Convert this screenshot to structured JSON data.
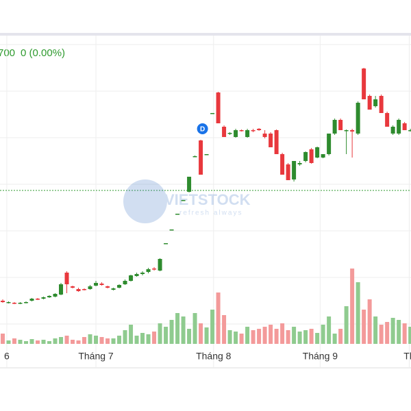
{
  "chart_data": {
    "type": "candlestick",
    "ref_label": "700",
    "change_label": "0 (0.00%)",
    "marker_label": "D",
    "watermark": "VIETSTOCK",
    "watermark_sub": "refresh always",
    "up_color": "#2e8b2e",
    "down_color": "#e8383d",
    "vol_up_color": "#8fcb8f",
    "vol_down_color": "#f39a9a",
    "ylim": [
      0,
      108
    ],
    "ygrid": [
      95,
      81.4,
      67.8,
      54.2,
      40.6,
      27,
      13.4
    ],
    "ref_value": 52.4,
    "marker_value": 70,
    "marker_index": 34.3,
    "vol_ylim": [
      0,
      150
    ],
    "xlim": [
      -0.47,
      70.1
    ],
    "xticks": [
      {
        "value": 0.7,
        "label": "6"
      },
      {
        "value": 16,
        "label": "Tháng 7"
      },
      {
        "value": 36.2,
        "label": "Tháng 8"
      },
      {
        "value": 54.5,
        "label": "Tháng 9"
      },
      {
        "value": 69.8,
        "label": "Th"
      }
    ],
    "open": [
      20.2,
      19.6,
      19.6,
      19.4,
      19.6,
      20.2,
      20.8,
      20.8,
      21.2,
      21.4,
      22,
      28.4,
      24.4,
      23.6,
      23.6,
      23.6,
      24.6,
      25.2,
      24.4,
      23.4,
      24,
      25,
      26,
      27.4,
      28,
      28.6,
      29.6,
      29,
      36.8,
      41,
      45.6,
      49.6,
      52,
      62.4,
      67,
      63,
      75,
      81,
      71,
      69,
      68,
      70,
      68,
      70,
      70.4,
      69,
      69,
      70,
      63,
      60,
      55.6,
      60,
      61,
      64.4,
      62,
      62,
      63,
      69,
      73,
      69.8,
      70,
      69,
      88,
      80,
      77,
      80,
      75,
      69,
      69,
      72,
      70
    ],
    "high": [
      20.6,
      20,
      19.8,
      19.8,
      20,
      21,
      21,
      21.4,
      21.8,
      22.4,
      25.4,
      28.8,
      24.6,
      24,
      23.8,
      24.8,
      26,
      25.6,
      24.6,
      24,
      25,
      26.4,
      27.8,
      28.4,
      28.8,
      29.8,
      30,
      32.6,
      37,
      41,
      45.6,
      49.6,
      56.4,
      62.6,
      67.2,
      63,
      75,
      81.2,
      71.4,
      69.4,
      70.4,
      70.2,
      70.4,
      70.4,
      70.6,
      70,
      69.4,
      70.2,
      63.4,
      60.4,
      61,
      61,
      63.8,
      64.8,
      65.2,
      63,
      69,
      73.4,
      73.4,
      70.2,
      70.4,
      78.4,
      88.2,
      80.4,
      80,
      80.4,
      75.4,
      71.4,
      73.4,
      72.4,
      70.4
    ],
    "low": [
      19.6,
      19.4,
      19.2,
      19.2,
      19.4,
      20,
      20.4,
      20.6,
      21,
      21.2,
      21.8,
      22.4,
      23.8,
      22.8,
      23.2,
      23.4,
      24.4,
      24.6,
      23.8,
      23.2,
      23.8,
      24.8,
      25.8,
      27.2,
      27.6,
      28.2,
      29,
      28.8,
      36.8,
      41,
      45.6,
      49.6,
      51.8,
      62.2,
      57,
      63,
      75,
      72,
      68,
      68.6,
      67.8,
      69.6,
      67.8,
      69.4,
      69.8,
      67.6,
      65,
      63,
      57,
      55.4,
      55,
      59.6,
      60.6,
      60.2,
      61.8,
      61.8,
      62.6,
      68.6,
      70,
      63,
      62,
      68.6,
      79,
      76,
      76.6,
      75,
      71,
      68.6,
      68.6,
      70,
      69.6
    ],
    "close": [
      19.8,
      19.8,
      19.4,
      19.6,
      19.8,
      20.8,
      20.6,
      21.2,
      21.6,
      22.2,
      25,
      25,
      24,
      23,
      23.4,
      24.4,
      25.4,
      24.8,
      24,
      23.8,
      24.8,
      26,
      27.6,
      28,
      28.4,
      29.4,
      29.4,
      32.4,
      37,
      41,
      45.6,
      49.6,
      56.4,
      62.4,
      57,
      63,
      75,
      72,
      68,
      69.2,
      70,
      69.8,
      70,
      69.8,
      70,
      68,
      65,
      63,
      57,
      55.4,
      61,
      60.4,
      63.6,
      60.4,
      65,
      63,
      69,
      73,
      70,
      70,
      69.6,
      78,
      79,
      76,
      79,
      75,
      71,
      71,
      73,
      70,
      70
    ],
    "volume": [
      15,
      5,
      8,
      6,
      4,
      7,
      5,
      6,
      4,
      8,
      10,
      12,
      6,
      5,
      10,
      14,
      12,
      10,
      8,
      8,
      12,
      20,
      28,
      12,
      16,
      14,
      18,
      30,
      25,
      35,
      45,
      40,
      22,
      45,
      30,
      24,
      50,
      75,
      42,
      20,
      18,
      15,
      25,
      20,
      22,
      25,
      28,
      22,
      30,
      20,
      25,
      18,
      20,
      22,
      16,
      28,
      40,
      15,
      22,
      55,
      110,
      90,
      50,
      65,
      40,
      28,
      32,
      38,
      35,
      30,
      25
    ]
  }
}
